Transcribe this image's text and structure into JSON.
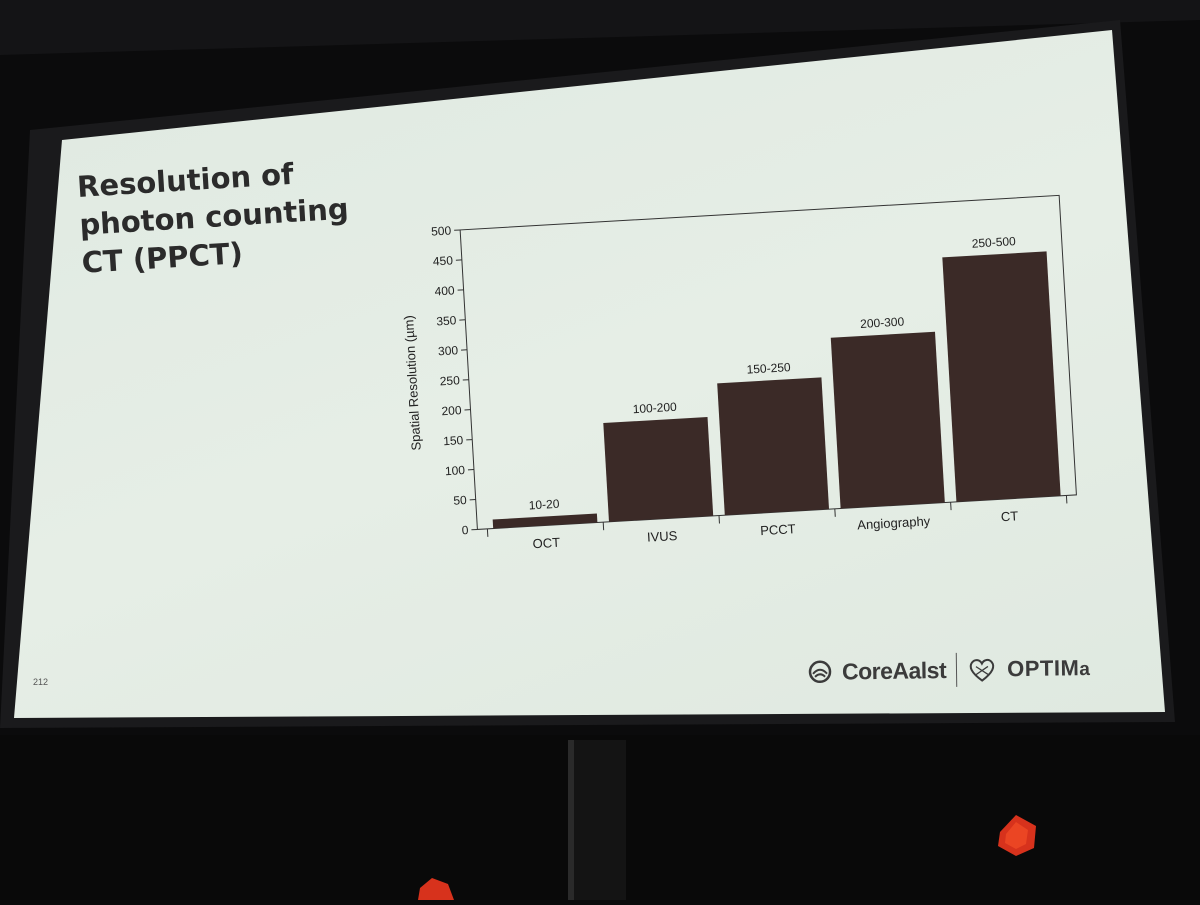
{
  "slide": {
    "title_lines": [
      "Resolution of",
      "photon counting",
      "CT (PPCT)"
    ],
    "page_number": "212",
    "logos": {
      "left": "CoreAalst",
      "right_prefix": "OPTIM",
      "right_suffix": "a"
    }
  },
  "colors": {
    "bar": "#3b2a27",
    "slide_bg": "#e2ebe3",
    "room": "#0b0b0c",
    "text": "#2b2b2b",
    "light_red": "#e2361f"
  },
  "chart_data": {
    "type": "bar",
    "title": "",
    "xlabel": "",
    "ylabel": "Spatial Resolution  (µm)",
    "ylim": [
      0,
      500
    ],
    "yticks": [
      0,
      50,
      100,
      150,
      200,
      250,
      300,
      350,
      400,
      450,
      500
    ],
    "categories": [
      "OCT",
      "IVUS",
      "PCCT",
      "Angiography",
      "CT"
    ],
    "values": [
      15,
      165,
      220,
      285,
      408
    ],
    "data_labels": [
      "10-20",
      "100-200",
      "150-250",
      "200-300",
      "250-500"
    ],
    "grid": false,
    "legend": "none"
  }
}
